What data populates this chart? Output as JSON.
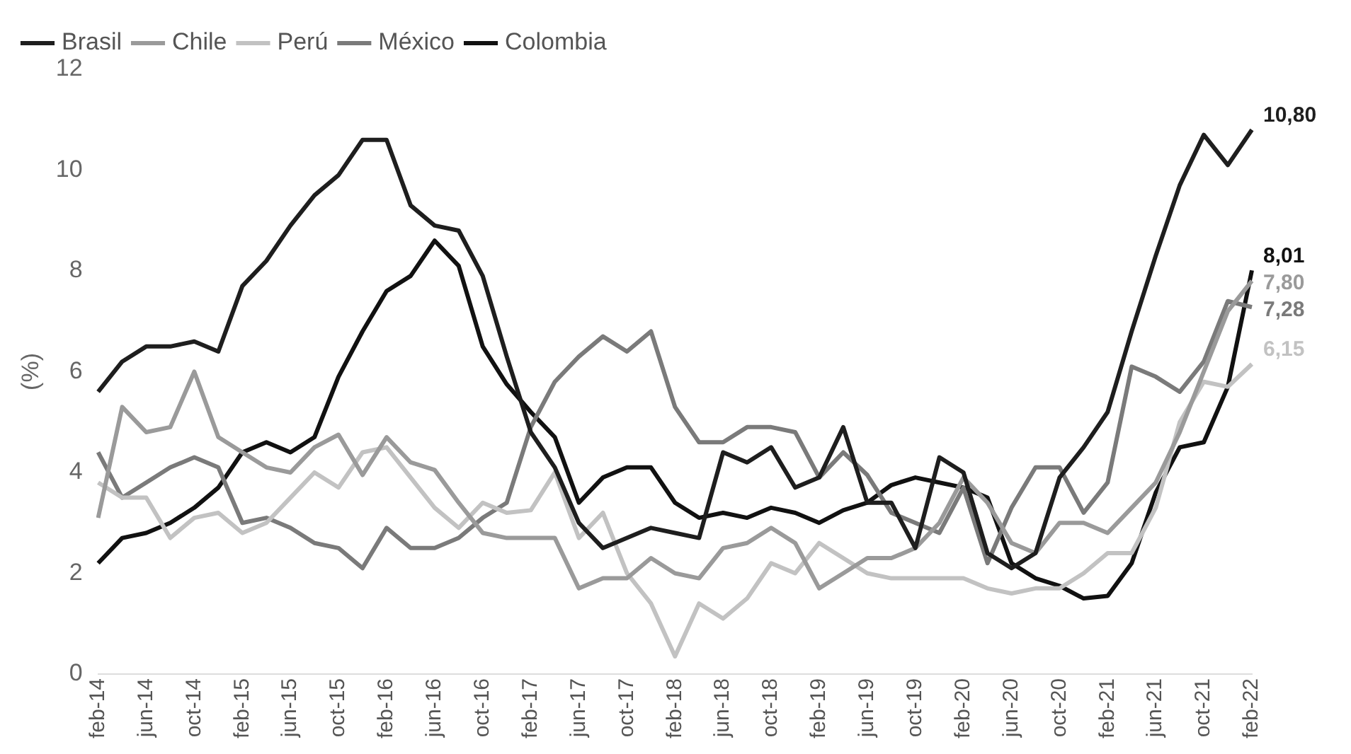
{
  "chart_data": {
    "type": "line",
    "ylabel": "(%)",
    "categories": [
      "feb-14",
      null,
      "jun-14",
      null,
      "oct-14",
      null,
      "feb-15",
      null,
      "jun-15",
      null,
      "oct-15",
      null,
      "feb-16",
      null,
      "jun-16",
      null,
      "oct-16",
      null,
      "feb-17",
      null,
      "jun-17",
      null,
      "oct-17",
      null,
      "feb-18",
      null,
      "jun-18",
      null,
      "oct-18",
      null,
      "feb-19",
      null,
      "jun-19",
      null,
      "oct-19",
      null,
      "feb-20",
      null,
      "jun-20",
      null,
      "oct-20",
      null,
      "feb-21",
      null,
      "jun-21",
      null,
      "oct-21",
      null,
      "feb-22"
    ],
    "series": [
      {
        "name": "Brasil",
        "color": "#1e1e1e",
        "values": [
          5.6,
          6.2,
          6.5,
          6.5,
          6.6,
          6.4,
          7.7,
          8.2,
          8.9,
          9.5,
          9.9,
          10.6,
          10.6,
          9.3,
          8.9,
          8.8,
          7.9,
          6.3,
          4.8,
          4.1,
          3.0,
          2.5,
          2.7,
          2.9,
          2.8,
          2.7,
          4.4,
          4.2,
          4.5,
          3.7,
          3.9,
          4.9,
          3.4,
          3.4,
          2.5,
          4.3,
          4.0,
          2.4,
          2.1,
          2.4,
          3.9,
          4.5,
          5.2,
          6.8,
          8.3,
          9.7,
          10.7,
          10.1,
          10.8
        ],
        "value_labels": [
          null,
          null,
          null,
          null,
          null,
          null,
          null,
          null,
          null,
          null,
          null,
          null,
          null,
          null,
          null,
          null,
          null,
          null,
          null,
          null,
          null,
          null,
          null,
          null,
          null,
          null,
          null,
          null,
          null,
          null,
          null,
          null,
          null,
          null,
          null,
          null,
          null,
          null,
          null,
          null,
          null,
          null,
          null,
          null,
          null,
          null,
          null,
          null,
          "10,80"
        ]
      },
      {
        "name": "Chile",
        "color": "#9a9a9a",
        "values": [
          3.1,
          5.3,
          4.8,
          4.9,
          6.0,
          4.7,
          4.4,
          4.1,
          4.0,
          4.5,
          4.75,
          3.95,
          4.7,
          4.2,
          4.05,
          3.4,
          2.8,
          2.7,
          2.7,
          2.7,
          1.7,
          1.9,
          1.9,
          2.3,
          2.0,
          1.9,
          2.5,
          2.6,
          2.9,
          2.6,
          1.7,
          2.0,
          2.3,
          2.3,
          2.5,
          3.0,
          3.9,
          3.4,
          2.6,
          2.4,
          3.0,
          3.0,
          2.8,
          3.3,
          3.8,
          4.8,
          6.0,
          7.2,
          7.8
        ],
        "value_labels": [
          null,
          null,
          null,
          null,
          null,
          null,
          null,
          null,
          null,
          null,
          null,
          null,
          null,
          null,
          null,
          null,
          null,
          null,
          null,
          null,
          null,
          null,
          null,
          null,
          null,
          null,
          null,
          null,
          null,
          null,
          null,
          null,
          null,
          null,
          null,
          null,
          null,
          null,
          null,
          null,
          null,
          null,
          null,
          null,
          null,
          null,
          null,
          null,
          "7,80"
        ]
      },
      {
        "name": "Perú",
        "color": "#c2c2c2",
        "values": [
          3.8,
          3.5,
          3.5,
          2.7,
          3.1,
          3.2,
          2.8,
          3.0,
          3.5,
          4.0,
          3.7,
          4.4,
          4.5,
          3.9,
          3.3,
          2.9,
          3.4,
          3.2,
          3.25,
          4.0,
          2.7,
          3.2,
          2.0,
          1.4,
          0.35,
          1.4,
          1.1,
          1.5,
          2.2,
          2.0,
          2.6,
          2.3,
          2.0,
          1.9,
          1.9,
          1.9,
          1.9,
          1.7,
          1.6,
          1.7,
          1.7,
          2.0,
          2.4,
          2.4,
          3.3,
          5.0,
          5.8,
          5.7,
          6.15
        ],
        "value_labels": [
          null,
          null,
          null,
          null,
          null,
          null,
          null,
          null,
          null,
          null,
          null,
          null,
          null,
          null,
          null,
          null,
          null,
          null,
          null,
          null,
          null,
          null,
          null,
          null,
          null,
          null,
          null,
          null,
          null,
          null,
          null,
          null,
          null,
          null,
          null,
          null,
          null,
          null,
          null,
          null,
          null,
          null,
          null,
          null,
          null,
          null,
          null,
          null,
          "6,15"
        ]
      },
      {
        "name": "México",
        "color": "#7a7a7a",
        "values": [
          4.4,
          3.5,
          3.8,
          4.1,
          4.3,
          4.1,
          3.0,
          3.1,
          2.9,
          2.6,
          2.5,
          2.1,
          2.9,
          2.5,
          2.5,
          2.7,
          3.1,
          3.4,
          4.9,
          5.8,
          6.3,
          6.7,
          6.4,
          6.8,
          5.3,
          4.6,
          4.6,
          4.9,
          4.9,
          4.8,
          3.9,
          4.4,
          3.95,
          3.2,
          3.0,
          2.8,
          3.7,
          2.2,
          3.3,
          4.1,
          4.1,
          3.2,
          3.8,
          6.1,
          5.9,
          5.6,
          6.2,
          7.4,
          7.28
        ],
        "value_labels": [
          null,
          null,
          null,
          null,
          null,
          null,
          null,
          null,
          null,
          null,
          null,
          null,
          null,
          null,
          null,
          null,
          null,
          null,
          null,
          null,
          null,
          null,
          null,
          null,
          null,
          null,
          null,
          null,
          null,
          null,
          null,
          null,
          null,
          null,
          null,
          null,
          null,
          null,
          null,
          null,
          null,
          null,
          null,
          null,
          null,
          null,
          null,
          null,
          "7,28"
        ]
      },
      {
        "name": "Colombia",
        "color": "#111111",
        "values": [
          2.2,
          2.7,
          2.8,
          3.0,
          3.3,
          3.7,
          4.4,
          4.6,
          4.4,
          4.7,
          5.9,
          6.8,
          7.6,
          7.9,
          8.6,
          8.1,
          6.5,
          5.75,
          5.2,
          4.7,
          3.4,
          3.9,
          4.1,
          4.1,
          3.4,
          3.1,
          3.2,
          3.1,
          3.3,
          3.2,
          3.0,
          3.25,
          3.4,
          3.75,
          3.9,
          3.8,
          3.7,
          3.5,
          2.2,
          1.9,
          1.75,
          1.5,
          1.55,
          2.2,
          3.6,
          4.5,
          4.6,
          5.7,
          8.01
        ],
        "value_labels": [
          null,
          null,
          null,
          null,
          null,
          null,
          null,
          null,
          null,
          null,
          null,
          null,
          null,
          null,
          null,
          null,
          null,
          null,
          null,
          null,
          null,
          null,
          null,
          null,
          null,
          null,
          null,
          null,
          null,
          null,
          null,
          null,
          null,
          null,
          null,
          null,
          null,
          null,
          null,
          null,
          null,
          null,
          null,
          null,
          null,
          null,
          null,
          null,
          "8,01"
        ]
      }
    ],
    "ylim": [
      0,
      12
    ],
    "yticks": [
      0,
      2,
      4,
      6,
      8,
      10,
      12
    ],
    "grid": false,
    "legend": "top",
    "marker": "none",
    "line_style": "solid"
  }
}
